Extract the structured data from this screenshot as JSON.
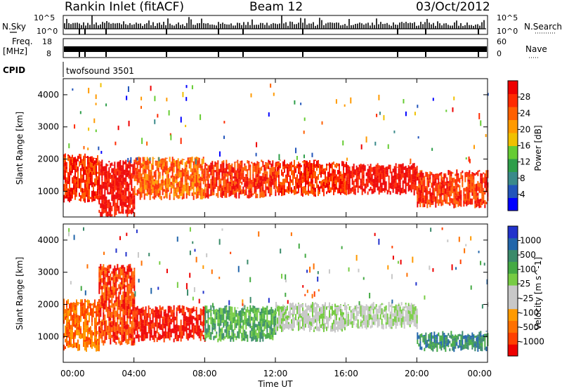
{
  "header": {
    "station": "Rankin Inlet (fitACF)",
    "beam": "Beam 12",
    "date": "03/Oct/2012"
  },
  "status_panels": {
    "nsky_label": "N.Sky",
    "nsearch_label": "N.Search",
    "nsky_ticks": [
      "10^5",
      "10^0"
    ],
    "nsearch_ticks": [
      "10^5",
      "10^0"
    ],
    "freq_label_top": "Freq.",
    "freq_label_bottom": "[MHz]",
    "freq_ticks": [
      "18",
      "8"
    ],
    "nave_label": "Nave",
    "nave_ticks": [
      "60",
      "0"
    ],
    "cpid_label": "CPID",
    "cpid_text": "twofsound 3501"
  },
  "chart_data": [
    {
      "type": "heatmap",
      "name": "power",
      "ylabel": "Slant Range [km]",
      "yticks": [
        1000,
        2000,
        3000,
        4000
      ],
      "ylim": [
        200,
        4500
      ],
      "xlim": [
        0,
        24
      ],
      "colorbar_label": "Power [dB]",
      "colorbar_ticks": [
        "4",
        "8",
        "12",
        "16",
        "20",
        "24",
        "28"
      ],
      "colorbar_colors": [
        "#0000ff",
        "#2255bb",
        "#3a8a8a",
        "#2e9e4a",
        "#66cc33",
        "#f0c000",
        "#ff9a00",
        "#ff6000",
        "#ff2a00",
        "#ee0000"
      ],
      "bands": [
        {
          "t0": 0.0,
          "t1": 2.0,
          "r0": 700,
          "r1": 2100,
          "level": 8
        },
        {
          "t0": 2.0,
          "t1": 4.0,
          "r0": 250,
          "r1": 1900,
          "level": 9
        },
        {
          "t0": 4.0,
          "t1": 8.0,
          "r0": 800,
          "r1": 2000,
          "level": 7
        },
        {
          "t0": 8.0,
          "t1": 12.0,
          "r0": 850,
          "r1": 1900,
          "level": 8
        },
        {
          "t0": 12.0,
          "t1": 16.0,
          "r0": 900,
          "r1": 1900,
          "level": 8
        },
        {
          "t0": 16.0,
          "t1": 20.0,
          "r0": 950,
          "r1": 1800,
          "level": 9
        },
        {
          "t0": 20.0,
          "t1": 24.0,
          "r0": 550,
          "r1": 1600,
          "level": 8
        }
      ]
    },
    {
      "type": "heatmap",
      "name": "velocity",
      "ylabel": "Slant Range [km]",
      "yticks": [
        1000,
        2000,
        3000,
        4000
      ],
      "ylim": [
        200,
        4500
      ],
      "xlabel": "Time UT",
      "xticks": [
        "00:00",
        "04:00",
        "08:00",
        "12:00",
        "16:00",
        "20:00",
        "00:00"
      ],
      "xlim": [
        0,
        24
      ],
      "colorbar_label": "Velocity [m s^-1]",
      "colorbar_ticks": [
        "1000",
        "500",
        "100",
        "25",
        "-25",
        "-100",
        "-500",
        "-1000"
      ],
      "colorbar_colors": [
        "#2233cc",
        "#2266aa",
        "#3a8a6a",
        "#44aa44",
        "#77cc44",
        "#c8c8c8",
        "#c8c8c8",
        "#ff9a00",
        "#ff7000",
        "#ff4000",
        "#ee0000"
      ],
      "bands": [
        {
          "t0": 0.0,
          "t1": 2.0,
          "r0": 600,
          "r1": 2100,
          "level": 2
        },
        {
          "t0": 2.0,
          "t1": 4.0,
          "r0": 800,
          "r1": 3200,
          "level": 1
        },
        {
          "t0": 4.0,
          "t1": 8.0,
          "r0": 900,
          "r1": 1900,
          "level": 0
        },
        {
          "t0": 8.0,
          "t1": 12.0,
          "r0": 900,
          "r1": 1900,
          "level": 7
        },
        {
          "t0": 12.0,
          "t1": 16.0,
          "r0": 1200,
          "r1": 2000,
          "level": 5
        },
        {
          "t0": 16.0,
          "t1": 20.0,
          "r0": 1300,
          "r1": 2000,
          "level": 5
        },
        {
          "t0": 20.0,
          "t1": 24.0,
          "r0": 600,
          "r1": 1100,
          "level": 8
        }
      ]
    }
  ]
}
